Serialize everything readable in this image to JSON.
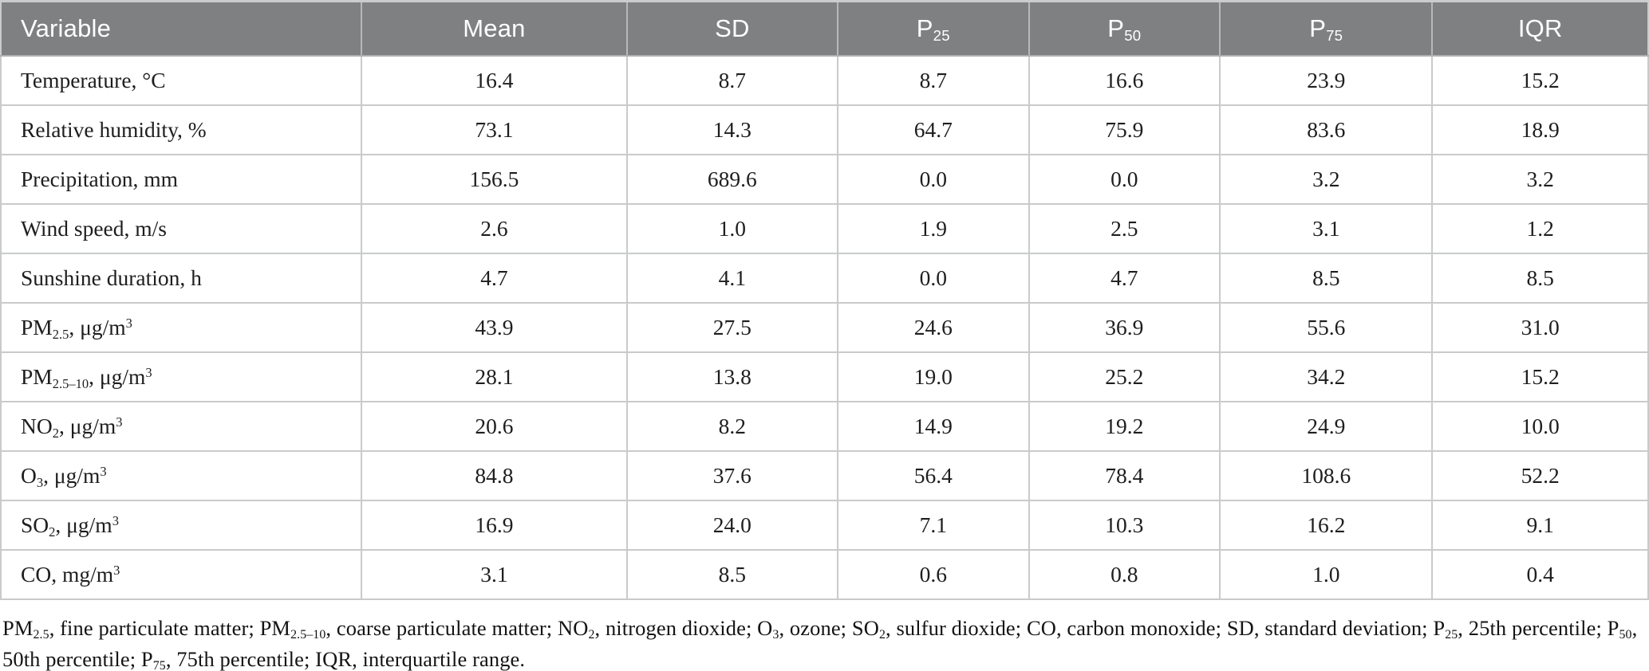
{
  "table": {
    "columns": [
      {
        "key": "variable",
        "label": "Variable",
        "align": "left"
      },
      {
        "key": "mean",
        "label": "Mean",
        "align": "center"
      },
      {
        "key": "sd",
        "label": "SD",
        "align": "center"
      },
      {
        "key": "p25",
        "label": "P~25~",
        "align": "center"
      },
      {
        "key": "p50",
        "label": "P~50~",
        "align": "center"
      },
      {
        "key": "p75",
        "label": "P~75~",
        "align": "center"
      },
      {
        "key": "iqr",
        "label": "IQR",
        "align": "center"
      }
    ],
    "column_widths_pct": [
      21.9,
      16.1,
      12.8,
      11.6,
      11.6,
      12.9,
      13.1
    ],
    "rows": [
      {
        "variable": "Temperature, °C",
        "values": [
          "16.4",
          "8.7",
          "8.7",
          "16.6",
          "23.9",
          "15.2"
        ]
      },
      {
        "variable": "Relative humidity, %",
        "values": [
          "73.1",
          "14.3",
          "64.7",
          "75.9",
          "83.6",
          "18.9"
        ]
      },
      {
        "variable": "Precipitation, mm",
        "values": [
          "156.5",
          "689.6",
          "0.0",
          "0.0",
          "3.2",
          "3.2"
        ]
      },
      {
        "variable": "Wind speed, m/s",
        "values": [
          "2.6",
          "1.0",
          "1.9",
          "2.5",
          "3.1",
          "1.2"
        ]
      },
      {
        "variable": "Sunshine duration, h",
        "values": [
          "4.7",
          "4.1",
          "0.0",
          "4.7",
          "8.5",
          "8.5"
        ]
      },
      {
        "variable": "PM~2.5~, μg/m^3^",
        "values": [
          "43.9",
          "27.5",
          "24.6",
          "36.9",
          "55.6",
          "31.0"
        ]
      },
      {
        "variable": "PM~2.5–10~, μg/m^3^",
        "values": [
          "28.1",
          "13.8",
          "19.0",
          "25.2",
          "34.2",
          "15.2"
        ]
      },
      {
        "variable": "NO~2~, μg/m^3^",
        "values": [
          "20.6",
          "8.2",
          "14.9",
          "19.2",
          "24.9",
          "10.0"
        ]
      },
      {
        "variable": "O~3~, μg/m^3^",
        "values": [
          "84.8",
          "37.6",
          "56.4",
          "78.4",
          "108.6",
          "52.2"
        ]
      },
      {
        "variable": "SO~2~, μg/m^3^",
        "values": [
          "16.9",
          "24.0",
          "7.1",
          "10.3",
          "16.2",
          "9.1"
        ]
      },
      {
        "variable": "CO, mg/m^3^",
        "values": [
          "3.1",
          "8.5",
          "0.6",
          "0.8",
          "1.0",
          "0.4"
        ]
      }
    ]
  },
  "footnote": "PM~2.5~, fine particulate matter; PM~2.5–10~, coarse particulate matter; NO~2~, nitrogen dioxide; O~3~, ozone; SO~2~, sulfur dioxide; CO, carbon monoxide; SD, standard deviation; P~25~, 25th percentile; P~50~, 50th percentile; P~75~, 75th percentile; IQR, interquartile range.",
  "colors": {
    "header_bg": "#7e8082",
    "header_text": "#ffffff",
    "body_text": "#1e1e1e",
    "grid": "#c9caca",
    "header_grid": "#b7b8b8",
    "page_bg": "#ffffff"
  }
}
